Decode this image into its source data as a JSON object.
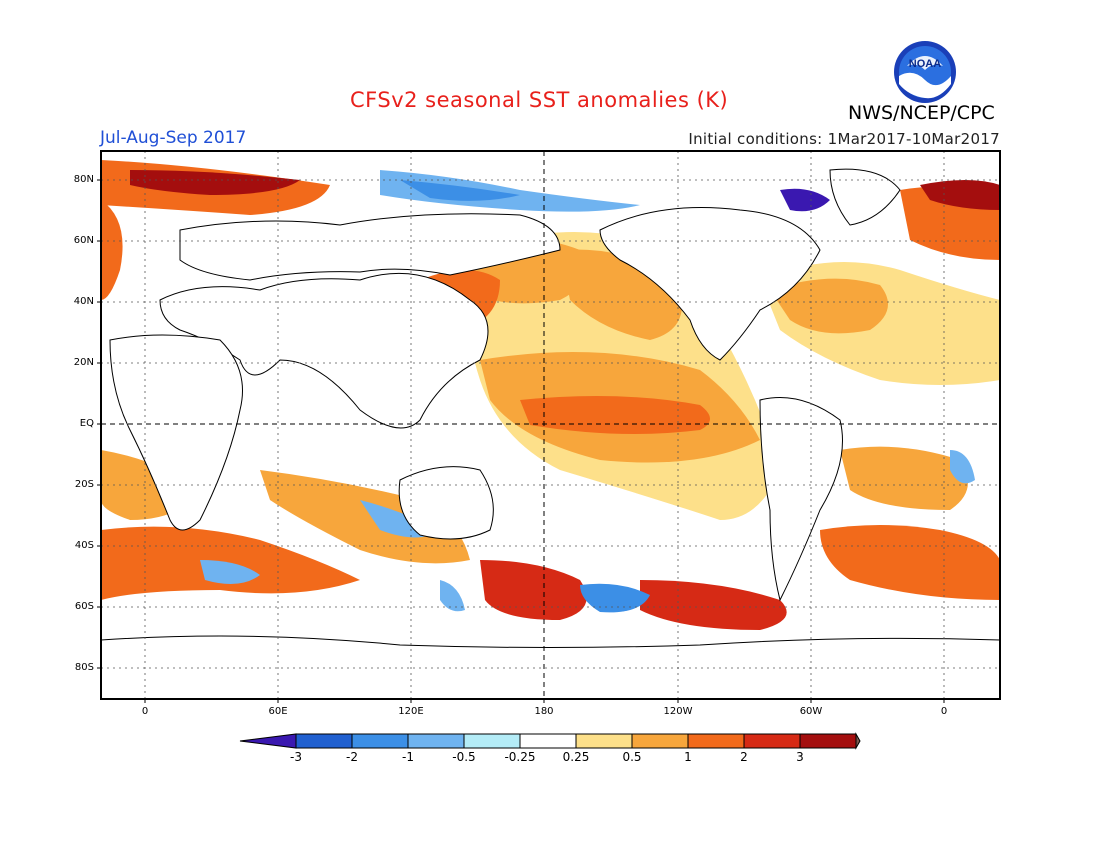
{
  "title": "CFSv2 seasonal SST anomalies (K)",
  "period": "Jul-Aug-Sep 2017",
  "initial_conditions": "Initial conditions: 1Mar2017-10Mar2017",
  "agency": "NWS/NCEP/CPC",
  "logo_text": "NOAA",
  "lat_labels": [
    "80N",
    "60N",
    "40N",
    "20N",
    "EQ",
    "20S",
    "40S",
    "60S",
    "80S"
  ],
  "lon_labels": [
    "0",
    "60E",
    "120E",
    "180",
    "120W",
    "60W",
    "0"
  ],
  "colorbar": {
    "labels": [
      "-3",
      "-2",
      "-1",
      "-0.5",
      "-0.25",
      "0.25",
      "0.5",
      "1",
      "2",
      "3"
    ],
    "colors": [
      "#3a18b0",
      "#2060d0",
      "#3c8fe6",
      "#6fb3f0",
      "#b4ecf7",
      "#ffffff",
      "#fde08a",
      "#f7a63c",
      "#f26a1b",
      "#d62a15",
      "#a40e0e",
      "#7a5a50"
    ]
  },
  "colors": {
    "title": "#e8201b",
    "period": "#1f4fd6",
    "ocean_warm_1": "#fde08a",
    "ocean_warm_2": "#f7a63c",
    "ocean_warm_3": "#f26a1b",
    "ocean_warm_4": "#d62a15",
    "ocean_warm_5": "#a40e0e",
    "ocean_cool_1": "#b4ecf7",
    "ocean_cool_2": "#6fb3f0",
    "ocean_cool_3": "#3c8fe6"
  }
}
